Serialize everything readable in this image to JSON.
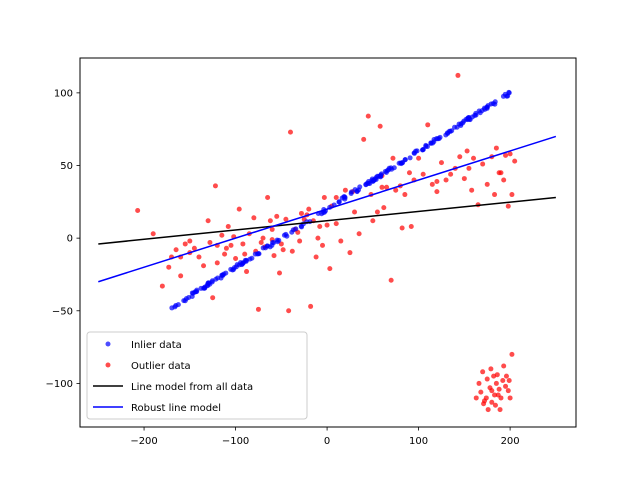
{
  "chart_data": {
    "type": "scatter",
    "title": "",
    "xlabel": "",
    "ylabel": "",
    "xlim": [
      -270,
      272
    ],
    "ylim": [
      -130,
      124
    ],
    "grid": false,
    "legend_placement": "lower-left",
    "x_ticks": [
      {
        "value": -200,
        "label": "−200"
      },
      {
        "value": -100,
        "label": "−100"
      },
      {
        "value": 0,
        "label": "0"
      },
      {
        "value": 100,
        "label": "100"
      },
      {
        "value": 200,
        "label": "200"
      }
    ],
    "y_ticks": [
      {
        "value": -100,
        "label": "−100"
      },
      {
        "value": -50,
        "label": "−50"
      },
      {
        "value": 0,
        "label": "0"
      },
      {
        "value": 50,
        "label": "50"
      },
      {
        "value": 100,
        "label": "100"
      }
    ],
    "colors": {
      "inlier": "#0000ff",
      "outlier": "#ff0000",
      "all_data_line": "#000000",
      "robust_line": "#0000ff"
    },
    "inliers": {
      "name": "Inlier data",
      "slope": 0.4,
      "intercept": 20,
      "x_range": [
        -170,
        200
      ],
      "count": 200
    },
    "outliers": {
      "name": "Outlier data",
      "points": [
        [
          -207,
          19
        ],
        [
          -190,
          3
        ],
        [
          -180,
          -33
        ],
        [
          -173,
          -20
        ],
        [
          -170,
          -13
        ],
        [
          -165,
          -8
        ],
        [
          -160,
          -26
        ],
        [
          -155,
          -4
        ],
        [
          -150,
          -2
        ],
        [
          -145,
          -7
        ],
        [
          -140,
          -13
        ],
        [
          -135,
          -19
        ],
        [
          -130,
          12
        ],
        [
          -128,
          -3
        ],
        [
          -125,
          -41
        ],
        [
          -122,
          36
        ],
        [
          -120,
          -17
        ],
        [
          -115,
          2
        ],
        [
          -112,
          -11
        ],
        [
          -110,
          -7
        ],
        [
          -108,
          8
        ],
        [
          -105,
          -5
        ],
        [
          -102,
          1
        ],
        [
          -100,
          -14
        ],
        [
          -96,
          20
        ],
        [
          -92,
          -4
        ],
        [
          -90,
          -11
        ],
        [
          -88,
          -23
        ],
        [
          -85,
          3
        ],
        [
          -80,
          14
        ],
        [
          -78,
          -9
        ],
        [
          -75,
          -49
        ],
        [
          -72,
          -3
        ],
        [
          -70,
          0
        ],
        [
          -68,
          -6
        ],
        [
          -65,
          28
        ],
        [
          -62,
          12
        ],
        [
          -60,
          -1
        ],
        [
          -58,
          -12
        ],
        [
          -55,
          15
        ],
        [
          -52,
          -24
        ],
        [
          -50,
          -4
        ],
        [
          -48,
          -8
        ],
        [
          -45,
          13
        ],
        [
          -42,
          -50
        ],
        [
          -40,
          73
        ],
        [
          -38,
          -9
        ],
        [
          -35,
          6
        ],
        [
          -32,
          4
        ],
        [
          -30,
          -2
        ],
        [
          -28,
          17
        ],
        [
          -25,
          13
        ],
        [
          -22,
          16
        ],
        [
          -18,
          -47
        ],
        [
          -15,
          12
        ],
        [
          -12,
          -13
        ],
        [
          -10,
          0
        ],
        [
          -8,
          8
        ],
        [
          -5,
          -5
        ],
        [
          -3,
          28
        ],
        [
          0,
          9
        ],
        [
          3,
          -21
        ],
        [
          5,
          22
        ],
        [
          10,
          10
        ],
        [
          15,
          -2
        ],
        [
          20,
          33
        ],
        [
          25,
          -10
        ],
        [
          28,
          32
        ],
        [
          30,
          18
        ],
        [
          35,
          3
        ],
        [
          40,
          68
        ],
        [
          45,
          84
        ],
        [
          48,
          30
        ],
        [
          50,
          12
        ],
        [
          55,
          18
        ],
        [
          58,
          77
        ],
        [
          60,
          43
        ],
        [
          62,
          21
        ],
        [
          65,
          35
        ],
        [
          70,
          -29
        ],
        [
          72,
          55
        ],
        [
          75,
          33
        ],
        [
          80,
          36
        ],
        [
          82,
          7
        ],
        [
          85,
          30
        ],
        [
          90,
          45
        ],
        [
          92,
          8
        ],
        [
          95,
          40
        ],
        [
          100,
          55
        ],
        [
          105,
          44
        ],
        [
          110,
          78
        ],
        [
          115,
          37
        ],
        [
          120,
          32
        ],
        [
          125,
          52
        ],
        [
          130,
          40
        ],
        [
          135,
          44
        ],
        [
          140,
          48
        ],
        [
          143,
          112
        ],
        [
          145,
          56
        ],
        [
          150,
          41
        ],
        [
          153,
          60
        ],
        [
          155,
          48
        ],
        [
          158,
          33
        ],
        [
          160,
          55
        ],
        [
          165,
          23
        ],
        [
          170,
          51
        ],
        [
          175,
          37
        ],
        [
          180,
          56
        ],
        [
          183,
          30
        ],
        [
          185,
          62
        ],
        [
          188,
          45
        ],
        [
          190,
          45
        ],
        [
          193,
          40
        ],
        [
          195,
          57
        ],
        [
          198,
          22
        ],
        [
          200,
          58
        ],
        [
          202,
          30
        ],
        [
          205,
          53
        ],
        [
          -160,
          -13
        ],
        [
          -150,
          -10
        ],
        [
          -120,
          -5
        ],
        [
          -60,
          6
        ],
        [
          -20,
          20
        ],
        [
          10,
          28
        ],
        [
          60,
          35
        ],
        [
          120,
          39
        ],
        [
          170,
          -92
        ],
        [
          175,
          -97
        ],
        [
          178,
          -103
        ],
        [
          180,
          -105
        ],
        [
          182,
          -95
        ],
        [
          185,
          -100
        ],
        [
          187,
          -108
        ],
        [
          190,
          -110
        ],
        [
          192,
          -98
        ],
        [
          195,
          -102
        ],
        [
          198,
          -105
        ],
        [
          200,
          -110
        ],
        [
          202,
          -80
        ],
        [
          172,
          -112
        ],
        [
          176,
          -118
        ],
        [
          180,
          -113
        ],
        [
          184,
          -115
        ],
        [
          188,
          -104
        ],
        [
          163,
          -110
        ],
        [
          168,
          -106
        ],
        [
          174,
          -110
        ],
        [
          179,
          -90
        ],
        [
          186,
          -94
        ],
        [
          193,
          -88
        ],
        [
          196,
          -95
        ],
        [
          166,
          -100
        ],
        [
          171,
          -114
        ],
        [
          189,
          -118
        ],
        [
          199,
          -98
        ],
        [
          183,
          -108
        ]
      ]
    },
    "line_all": {
      "name": "Line model from all data",
      "x": [
        -250,
        250
      ],
      "y": [
        -4,
        28
      ]
    },
    "line_robust": {
      "name": "Robust line model",
      "x": [
        -250,
        250
      ],
      "y": [
        -30,
        70
      ]
    }
  }
}
